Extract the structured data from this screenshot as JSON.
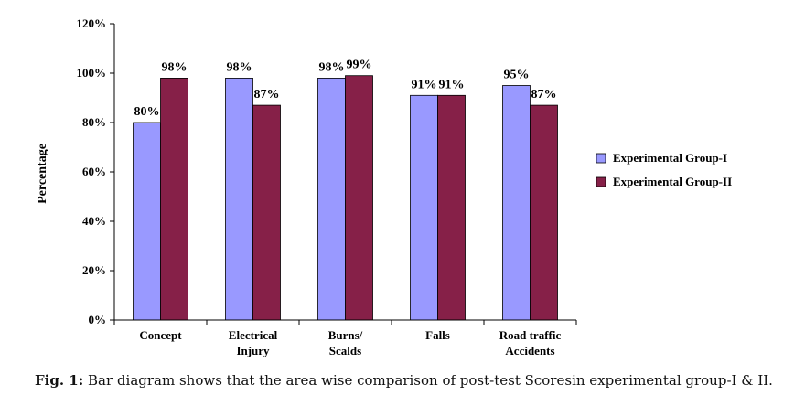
{
  "chart_data": {
    "type": "bar",
    "title": "",
    "xlabel": "",
    "ylabel": "Percentage",
    "ylim": [
      0,
      120
    ],
    "yticks": [
      0,
      20,
      40,
      60,
      80,
      100,
      120
    ],
    "ytick_labels": [
      "0%",
      "20%",
      "40%",
      "60%",
      "80%",
      "100%",
      "120%"
    ],
    "categories": [
      [
        "Concept"
      ],
      [
        "Electrical",
        "Injury"
      ],
      [
        "Burns/",
        "Scalds"
      ],
      [
        "Falls"
      ],
      [
        "Road traffic",
        "Accidents"
      ]
    ],
    "series": [
      {
        "name": "Experimental Group-I",
        "color": "#9999ff",
        "values": [
          80,
          98,
          98,
          91,
          95
        ],
        "labels": [
          "80%",
          "98%",
          "98%",
          "91%",
          "95%"
        ]
      },
      {
        "name": "Experimental Group-II",
        "color": "#862048",
        "values": [
          98,
          87,
          99,
          91,
          87
        ],
        "labels": [
          "98%",
          "87%",
          "99%",
          "91%",
          "87%"
        ]
      }
    ],
    "legend_position": "right"
  },
  "caption": {
    "label": "Fig. 1:",
    "text": " Bar diagram shows that the area wise comparison of post-test Scoresin experimental group-I & II."
  }
}
